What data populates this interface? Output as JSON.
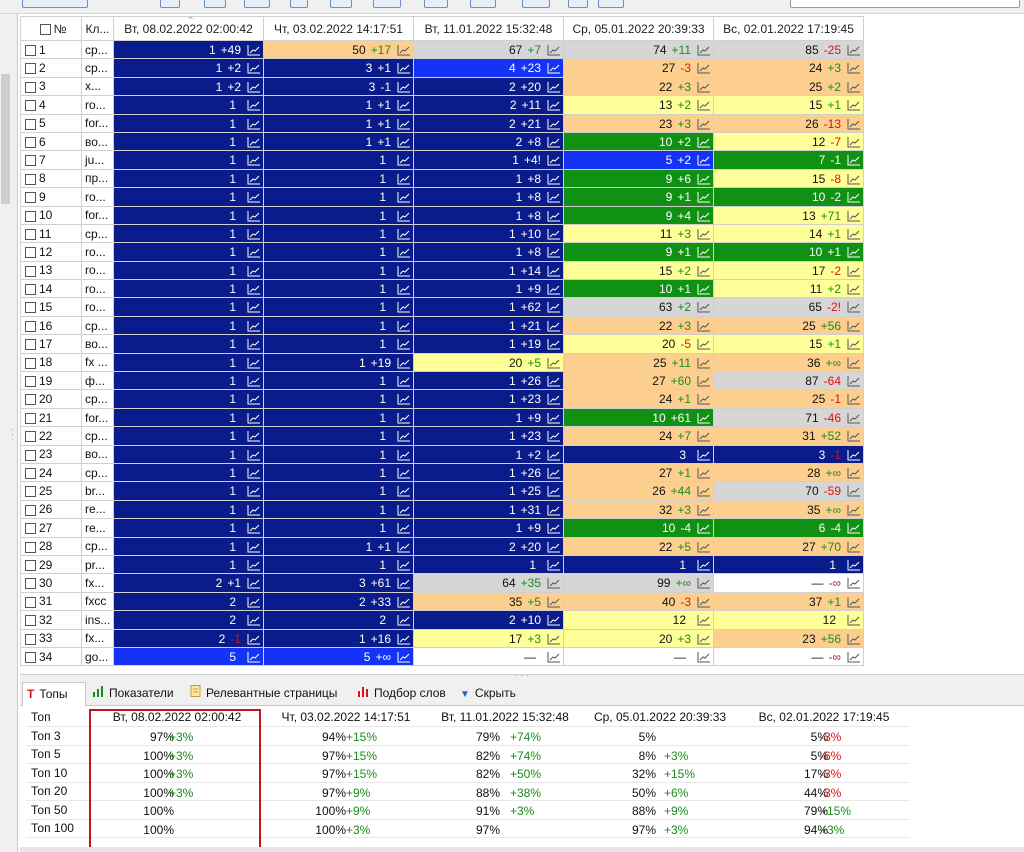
{
  "columns": {
    "no": "№",
    "keyword": "Кл...",
    "dates": [
      "Вт, 08.02.2022 02:00:42",
      "Чт, 03.02.2022 14:17:51",
      "Вт, 11.01.2022 15:32:48",
      "Ср, 05.01.2022 20:39:33",
      "Вс, 02.01.2022 17:19:45"
    ]
  },
  "rows": [
    {
      "n": "1",
      "k": "ср...",
      "c": [
        [
          "1",
          "+49",
          "navy",
          "g"
        ],
        [
          "50",
          "+17",
          "ora",
          "g"
        ],
        [
          "67",
          "+7",
          "gray",
          "g"
        ],
        [
          "74",
          "+11",
          "gray",
          "g"
        ],
        [
          "85",
          "-25",
          "gray",
          "r"
        ]
      ]
    },
    {
      "n": "2",
      "k": "ср...",
      "c": [
        [
          "1",
          "+2",
          "navy",
          "g"
        ],
        [
          "3",
          "+1",
          "navy",
          "g"
        ],
        [
          "4",
          "+23",
          "blue",
          "g"
        ],
        [
          "27",
          "-3",
          "ora",
          "r"
        ],
        [
          "24",
          "+3",
          "ora",
          "g"
        ]
      ]
    },
    {
      "n": "3",
      "k": "х...",
      "c": [
        [
          "1",
          "+2",
          "navy",
          "g"
        ],
        [
          "3",
          "-1",
          "navy",
          "g"
        ],
        [
          "2",
          "+20",
          "navy",
          "g"
        ],
        [
          "22",
          "+3",
          "ora",
          "g"
        ],
        [
          "25",
          "+2",
          "ora",
          "g"
        ]
      ]
    },
    {
      "n": "4",
      "k": "ro...",
      "c": [
        [
          "1",
          "",
          "navy",
          ""
        ],
        [
          "1",
          "+1",
          "navy",
          "g"
        ],
        [
          "2",
          "+11",
          "navy",
          "g"
        ],
        [
          "13",
          "+2",
          "yel",
          "g"
        ],
        [
          "15",
          "+1",
          "yel",
          "g"
        ]
      ]
    },
    {
      "n": "5",
      "k": "for...",
      "c": [
        [
          "1",
          "",
          "navy",
          ""
        ],
        [
          "1",
          "+1",
          "navy",
          "g"
        ],
        [
          "2",
          "+21",
          "navy",
          "g"
        ],
        [
          "23",
          "+3",
          "ora",
          "g"
        ],
        [
          "26",
          "-13",
          "ora",
          "r"
        ]
      ]
    },
    {
      "n": "6",
      "k": "во...",
      "c": [
        [
          "1",
          "",
          "navy",
          ""
        ],
        [
          "1",
          "+1",
          "navy",
          "g"
        ],
        [
          "2",
          "+8",
          "navy",
          "g"
        ],
        [
          "10",
          "+2",
          "green",
          "g"
        ],
        [
          "12",
          "-7",
          "yel",
          "r"
        ]
      ]
    },
    {
      "n": "7",
      "k": "ju...",
      "c": [
        [
          "1",
          "",
          "navy",
          ""
        ],
        [
          "1",
          "",
          "navy",
          ""
        ],
        [
          "1",
          "+4!",
          "navy",
          "g"
        ],
        [
          "5",
          "+2",
          "blue",
          "g"
        ],
        [
          "7",
          "-1",
          "green",
          "r"
        ]
      ]
    },
    {
      "n": "8",
      "k": "пр...",
      "c": [
        [
          "1",
          "",
          "navy",
          ""
        ],
        [
          "1",
          "",
          "navy",
          ""
        ],
        [
          "1",
          "+8",
          "navy",
          "g"
        ],
        [
          "9",
          "+6",
          "green",
          "g"
        ],
        [
          "15",
          "-8",
          "yel",
          "r"
        ]
      ]
    },
    {
      "n": "9",
      "k": "ro...",
      "c": [
        [
          "1",
          "",
          "navy",
          ""
        ],
        [
          "1",
          "",
          "navy",
          ""
        ],
        [
          "1",
          "+8",
          "navy",
          "g"
        ],
        [
          "9",
          "+1",
          "green",
          "g"
        ],
        [
          "10",
          "-2",
          "green",
          "r"
        ]
      ]
    },
    {
      "n": "10",
      "k": "for...",
      "c": [
        [
          "1",
          "",
          "navy",
          ""
        ],
        [
          "1",
          "",
          "navy",
          ""
        ],
        [
          "1",
          "+8",
          "navy",
          "g"
        ],
        [
          "9",
          "+4",
          "green",
          "g"
        ],
        [
          "13",
          "+71",
          "yel",
          "g"
        ]
      ]
    },
    {
      "n": "11",
      "k": "ср...",
      "c": [
        [
          "1",
          "",
          "navy",
          ""
        ],
        [
          "1",
          "",
          "navy",
          ""
        ],
        [
          "1",
          "+10",
          "navy",
          "g"
        ],
        [
          "11",
          "+3",
          "yel",
          "g"
        ],
        [
          "14",
          "+1",
          "yel",
          "g"
        ]
      ]
    },
    {
      "n": "12",
      "k": "ro...",
      "c": [
        [
          "1",
          "",
          "navy",
          ""
        ],
        [
          "1",
          "",
          "navy",
          ""
        ],
        [
          "1",
          "+8",
          "navy",
          "g"
        ],
        [
          "9",
          "+1",
          "green",
          "g"
        ],
        [
          "10",
          "+1",
          "green",
          "g"
        ]
      ]
    },
    {
      "n": "13",
      "k": "ro...",
      "c": [
        [
          "1",
          "",
          "navy",
          ""
        ],
        [
          "1",
          "",
          "navy",
          ""
        ],
        [
          "1",
          "+14",
          "navy",
          "g"
        ],
        [
          "15",
          "+2",
          "yel",
          "g"
        ],
        [
          "17",
          "-2",
          "yel",
          "r"
        ]
      ]
    },
    {
      "n": "14",
      "k": "ro...",
      "c": [
        [
          "1",
          "",
          "navy",
          ""
        ],
        [
          "1",
          "",
          "navy",
          ""
        ],
        [
          "1",
          "+9",
          "navy",
          "g"
        ],
        [
          "10",
          "+1",
          "green",
          "g"
        ],
        [
          "11",
          "+2",
          "yel",
          "g"
        ]
      ]
    },
    {
      "n": "15",
      "k": "ro...",
      "c": [
        [
          "1",
          "",
          "navy",
          ""
        ],
        [
          "1",
          "",
          "navy",
          ""
        ],
        [
          "1",
          "+62",
          "navy",
          "g"
        ],
        [
          "63",
          "+2",
          "gray",
          "g"
        ],
        [
          "65",
          "-2!",
          "gray",
          "r"
        ]
      ]
    },
    {
      "n": "16",
      "k": "ср...",
      "c": [
        [
          "1",
          "",
          "navy",
          ""
        ],
        [
          "1",
          "",
          "navy",
          ""
        ],
        [
          "1",
          "+21",
          "navy",
          "g"
        ],
        [
          "22",
          "+3",
          "ora",
          "g"
        ],
        [
          "25",
          "+56",
          "ora",
          "g"
        ]
      ]
    },
    {
      "n": "17",
      "k": "во...",
      "c": [
        [
          "1",
          "",
          "navy",
          ""
        ],
        [
          "1",
          "",
          "navy",
          ""
        ],
        [
          "1",
          "+19",
          "navy",
          "g"
        ],
        [
          "20",
          "-5",
          "yel",
          "r"
        ],
        [
          "15",
          "+1",
          "yel",
          "g"
        ]
      ]
    },
    {
      "n": "18",
      "k": "fx ...",
      "c": [
        [
          "1",
          "",
          "navy",
          ""
        ],
        [
          "1",
          "+19",
          "navy",
          "g"
        ],
        [
          "20",
          "+5",
          "yel",
          "g"
        ],
        [
          "25",
          "+11",
          "ora",
          "g"
        ],
        [
          "36",
          "+∞",
          "ora",
          "g"
        ]
      ]
    },
    {
      "n": "19",
      "k": "ф...",
      "c": [
        [
          "1",
          "",
          "navy",
          ""
        ],
        [
          "1",
          "",
          "navy",
          ""
        ],
        [
          "1",
          "+26",
          "navy",
          "g"
        ],
        [
          "27",
          "+60",
          "ora",
          "g"
        ],
        [
          "87",
          "-64",
          "gray",
          "r"
        ]
      ]
    },
    {
      "n": "20",
      "k": "ср...",
      "c": [
        [
          "1",
          "",
          "navy",
          ""
        ],
        [
          "1",
          "",
          "navy",
          ""
        ],
        [
          "1",
          "+23",
          "navy",
          "g"
        ],
        [
          "24",
          "+1",
          "ora",
          "g"
        ],
        [
          "25",
          "-1",
          "ora",
          "r"
        ]
      ]
    },
    {
      "n": "21",
      "k": "for...",
      "c": [
        [
          "1",
          "",
          "navy",
          ""
        ],
        [
          "1",
          "",
          "navy",
          ""
        ],
        [
          "1",
          "+9",
          "navy",
          "g"
        ],
        [
          "10",
          "+61",
          "green",
          "g"
        ],
        [
          "71",
          "-46",
          "gray",
          "r"
        ]
      ]
    },
    {
      "n": "22",
      "k": "ср...",
      "c": [
        [
          "1",
          "",
          "navy",
          ""
        ],
        [
          "1",
          "",
          "navy",
          ""
        ],
        [
          "1",
          "+23",
          "navy",
          "g"
        ],
        [
          "24",
          "+7",
          "ora",
          "g"
        ],
        [
          "31",
          "+52",
          "ora",
          "g"
        ]
      ]
    },
    {
      "n": "23",
      "k": "во...",
      "c": [
        [
          "1",
          "",
          "navy",
          ""
        ],
        [
          "1",
          "",
          "navy",
          ""
        ],
        [
          "1",
          "+2",
          "navy",
          "g"
        ],
        [
          "3",
          "",
          "navy",
          ""
        ],
        [
          "3",
          "-1",
          "navy",
          "r"
        ]
      ]
    },
    {
      "n": "24",
      "k": "ср...",
      "c": [
        [
          "1",
          "",
          "navy",
          ""
        ],
        [
          "1",
          "",
          "navy",
          ""
        ],
        [
          "1",
          "+26",
          "navy",
          "g"
        ],
        [
          "27",
          "+1",
          "ora",
          "g"
        ],
        [
          "28",
          "+∞",
          "ora",
          "g"
        ]
      ]
    },
    {
      "n": "25",
      "k": "br...",
      "c": [
        [
          "1",
          "",
          "navy",
          ""
        ],
        [
          "1",
          "",
          "navy",
          ""
        ],
        [
          "1",
          "+25",
          "navy",
          "g"
        ],
        [
          "26",
          "+44",
          "ora",
          "g"
        ],
        [
          "70",
          "-59",
          "gray",
          "r"
        ]
      ]
    },
    {
      "n": "26",
      "k": "re...",
      "c": [
        [
          "1",
          "",
          "navy",
          ""
        ],
        [
          "1",
          "",
          "navy",
          ""
        ],
        [
          "1",
          "+31",
          "navy",
          "g"
        ],
        [
          "32",
          "+3",
          "ora",
          "g"
        ],
        [
          "35",
          "+∞",
          "ora",
          "g"
        ]
      ]
    },
    {
      "n": "27",
      "k": "re...",
      "c": [
        [
          "1",
          "",
          "navy",
          ""
        ],
        [
          "1",
          "",
          "navy",
          ""
        ],
        [
          "1",
          "+9",
          "navy",
          "g"
        ],
        [
          "10",
          "-4",
          "green",
          "r"
        ],
        [
          "6",
          "-4",
          "green",
          "r"
        ]
      ]
    },
    {
      "n": "28",
      "k": "ср...",
      "c": [
        [
          "1",
          "",
          "navy",
          ""
        ],
        [
          "1",
          "+1",
          "navy",
          "g"
        ],
        [
          "2",
          "+20",
          "navy",
          "g"
        ],
        [
          "22",
          "+5",
          "ora",
          "g"
        ],
        [
          "27",
          "+70",
          "ora",
          "g"
        ]
      ]
    },
    {
      "n": "29",
      "k": "pr...",
      "c": [
        [
          "1",
          "",
          "navy",
          ""
        ],
        [
          "1",
          "",
          "navy",
          ""
        ],
        [
          "1",
          "",
          "navy",
          ""
        ],
        [
          "1",
          "",
          "navy",
          ""
        ],
        [
          "1",
          "",
          "navy",
          ""
        ]
      ]
    },
    {
      "n": "30",
      "k": "fx...",
      "c": [
        [
          "2",
          "+1",
          "navy",
          "g"
        ],
        [
          "3",
          "+61",
          "navy",
          "g"
        ],
        [
          "64",
          "+35",
          "gray",
          "g"
        ],
        [
          "99",
          "+∞",
          "gray",
          "g"
        ],
        [
          "—",
          "-∞",
          "white",
          "r"
        ]
      ]
    },
    {
      "n": "31",
      "k": "fxcc",
      "c": [
        [
          "2",
          "",
          "navy",
          ""
        ],
        [
          "2",
          "+33",
          "navy",
          "g"
        ],
        [
          "35",
          "+5",
          "ora",
          "g"
        ],
        [
          "40",
          "-3",
          "ora",
          "r"
        ],
        [
          "37",
          "+1",
          "ora",
          "g"
        ]
      ]
    },
    {
      "n": "32",
      "k": "ins...",
      "c": [
        [
          "2",
          "",
          "navy",
          ""
        ],
        [
          "2",
          "",
          "navy",
          ""
        ],
        [
          "2",
          "+10",
          "navy",
          "g"
        ],
        [
          "12",
          "",
          "yel",
          ""
        ],
        [
          "12",
          "",
          "yel",
          ""
        ]
      ]
    },
    {
      "n": "33",
      "k": "fx...",
      "c": [
        [
          "2",
          "-1",
          "navy",
          "r"
        ],
        [
          "1",
          "+16",
          "navy",
          "g"
        ],
        [
          "17",
          "+3",
          "yel",
          "g"
        ],
        [
          "20",
          "+3",
          "yel",
          "g"
        ],
        [
          "23",
          "+56",
          "ora",
          "g"
        ]
      ]
    },
    {
      "n": "34",
      "k": "go...",
      "c": [
        [
          "5",
          "",
          "blue",
          ""
        ],
        [
          "5",
          "+∞",
          "blue",
          "g"
        ],
        [
          "—",
          "",
          "white",
          ""
        ],
        [
          "—",
          "",
          "white",
          ""
        ],
        [
          "—",
          "-∞",
          "white",
          "r"
        ]
      ]
    }
  ],
  "tabs": [
    {
      "label": "Топы",
      "icon": "T"
    },
    {
      "label": "Показатели",
      "icon": "bars"
    },
    {
      "label": "Релевантные страницы",
      "icon": "page"
    },
    {
      "label": "Подбор слов",
      "icon": "bars-red"
    },
    {
      "label": "Скрыть",
      "icon": "▼"
    }
  ],
  "tops": {
    "header": "Топ",
    "dates": [
      "Вт, 08.02.2022 02:00:42",
      "Чт, 03.02.2022 14:17:51",
      "Вт, 11.01.2022 15:32:48",
      "Ср, 05.01.2022 20:39:33",
      "Вс, 02.01.2022 17:19:45"
    ],
    "rows": [
      {
        "label": "Топ 3",
        "vals": [
          [
            "97%",
            "+3%"
          ],
          [
            "94%",
            "+15%"
          ],
          [
            "79%",
            "+74%"
          ],
          [
            "5%",
            ""
          ],
          [
            "5%",
            "-3%"
          ]
        ]
      },
      {
        "label": "Топ 5",
        "vals": [
          [
            "100%",
            "+3%"
          ],
          [
            "97%",
            "+15%"
          ],
          [
            "82%",
            "+74%"
          ],
          [
            "8%",
            "+3%"
          ],
          [
            "5%",
            "-6%"
          ]
        ]
      },
      {
        "label": "Топ 10",
        "vals": [
          [
            "100%",
            "+3%"
          ],
          [
            "97%",
            "+15%"
          ],
          [
            "82%",
            "+50%"
          ],
          [
            "32%",
            "+15%"
          ],
          [
            "17%",
            "-3%"
          ]
        ]
      },
      {
        "label": "Топ 20",
        "vals": [
          [
            "100%",
            "+3%"
          ],
          [
            "97%",
            "+9%"
          ],
          [
            "88%",
            "+38%"
          ],
          [
            "50%",
            "+6%"
          ],
          [
            "44%",
            "-3%"
          ]
        ]
      },
      {
        "label": "Топ 50",
        "vals": [
          [
            "100%",
            ""
          ],
          [
            "100%",
            "+9%"
          ],
          [
            "91%",
            "+3%"
          ],
          [
            "88%",
            "+9%"
          ],
          [
            "79%",
            "+15%"
          ]
        ]
      },
      {
        "label": "Топ 100",
        "vals": [
          [
            "100%",
            ""
          ],
          [
            "100%",
            "+3%"
          ],
          [
            "97%",
            ""
          ],
          [
            "97%",
            "+3%"
          ],
          [
            "94%",
            "+3%"
          ]
        ]
      }
    ]
  },
  "colors": {
    "navy": "#0a1c8c",
    "blue": "#1433f5",
    "green": "#119114",
    "yellow": "#ffff99",
    "orange": "#fdcf8f",
    "gray": "#d6d6d6",
    "up": "#1b8c1b",
    "down": "#e01010",
    "highlight": "#c01818"
  }
}
